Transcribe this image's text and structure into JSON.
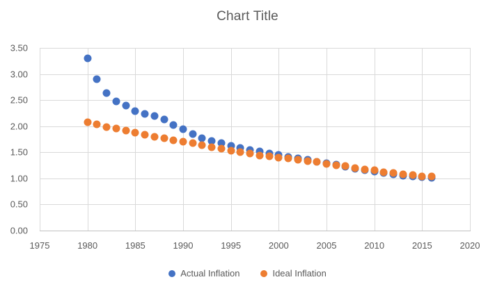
{
  "title": "Chart Title",
  "colors": {
    "actual_series": "#4472C4",
    "ideal_series": "#ED7D31",
    "gridline": "#D9D9D9",
    "axis_line": "#BFBFBF",
    "text": "#595959"
  },
  "legend": {
    "items": [
      {
        "label": "Actual Inflation",
        "color": "#4472C4"
      },
      {
        "label": "Ideal Inflation",
        "color": "#ED7D31"
      }
    ]
  },
  "chart_data": {
    "type": "scatter",
    "title": "Chart Title",
    "xlabel": "",
    "ylabel": "",
    "xlim": [
      1975,
      2020
    ],
    "ylim": [
      0,
      3.5
    ],
    "grid": true,
    "legend_position": "bottom",
    "xticks": [
      "1975",
      "1980",
      "1985",
      "1990",
      "1995",
      "2000",
      "2005",
      "2010",
      "2015",
      "2020"
    ],
    "yticks": [
      "3.50",
      "3.00",
      "2.50",
      "2.00",
      "1.50",
      "1.00",
      "0.50",
      "0.00"
    ],
    "x": [
      1980,
      1981,
      1982,
      1983,
      1984,
      1985,
      1986,
      1987,
      1988,
      1989,
      1990,
      1991,
      1992,
      1993,
      1994,
      1995,
      1996,
      1997,
      1998,
      1999,
      2000,
      2001,
      2002,
      2003,
      2004,
      2005,
      2006,
      2007,
      2008,
      2009,
      2010,
      2011,
      2012,
      2013,
      2014,
      2015,
      2016
    ],
    "series": [
      {
        "name": "Actual Inflation",
        "color": "#4472C4",
        "values": [
          3.3,
          2.9,
          2.64,
          2.48,
          2.39,
          2.29,
          2.23,
          2.19,
          2.13,
          2.02,
          1.94,
          1.85,
          1.77,
          1.72,
          1.67,
          1.62,
          1.58,
          1.54,
          1.51,
          1.48,
          1.45,
          1.41,
          1.38,
          1.35,
          1.32,
          1.29,
          1.26,
          1.22,
          1.18,
          1.15,
          1.13,
          1.1,
          1.07,
          1.05,
          1.03,
          1.02,
          1.01
        ]
      },
      {
        "name": "Ideal Inflation",
        "color": "#ED7D31",
        "values": [
          2.07,
          2.03,
          1.98,
          1.95,
          1.91,
          1.87,
          1.84,
          1.8,
          1.77,
          1.73,
          1.7,
          1.67,
          1.63,
          1.6,
          1.57,
          1.53,
          1.5,
          1.47,
          1.44,
          1.42,
          1.4,
          1.38,
          1.35,
          1.33,
          1.31,
          1.28,
          1.25,
          1.23,
          1.2,
          1.17,
          1.15,
          1.12,
          1.1,
          1.08,
          1.06,
          1.04,
          1.03
        ]
      }
    ]
  }
}
